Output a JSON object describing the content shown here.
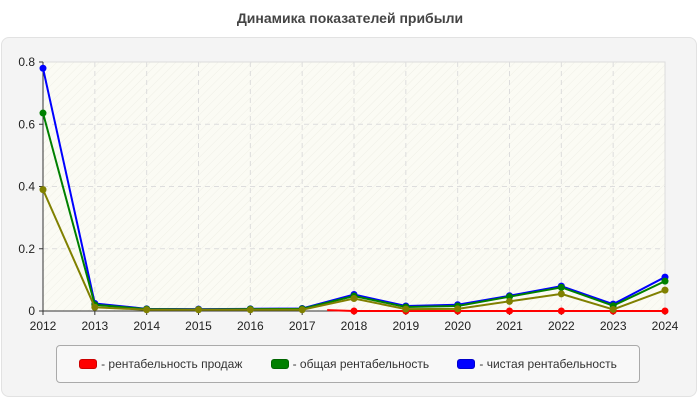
{
  "chart_data": {
    "type": "line",
    "title": "Динамика показателей прибыли",
    "xlabel": "",
    "ylabel": "",
    "ylim": [
      0,
      0.8
    ],
    "yticks": [
      0,
      0.2,
      0.4,
      0.6,
      0.8
    ],
    "ytick_labels": [
      "0",
      "0.2",
      "0.4",
      "0.6",
      "0.8"
    ],
    "grid": true,
    "legend_position": "bottom",
    "categories": [
      "2012",
      "2013",
      "2014",
      "2015",
      "2016",
      "2017",
      "2018",
      "2019",
      "2020",
      "2021",
      "2022",
      "2023",
      "2024"
    ],
    "series": [
      {
        "name": "рентабельность продаж",
        "color": "#ff0000",
        "in_legend": true,
        "values": [
          null,
          null,
          null,
          null,
          null,
          0.003,
          0.0,
          0.0,
          0.0,
          0.0,
          0.0,
          0.0,
          0.0
        ]
      },
      {
        "name": "общая рентабельность",
        "color": "#008000",
        "in_legend": true,
        "values": [
          0.636,
          0.02,
          0.006,
          0.005,
          0.006,
          0.007,
          0.048,
          0.013,
          0.016,
          0.046,
          0.076,
          0.017,
          0.096
        ]
      },
      {
        "name": "чистая рентабельность",
        "color": "#0000ff",
        "in_legend": true,
        "values": [
          0.78,
          0.024,
          0.007,
          0.006,
          0.007,
          0.008,
          0.053,
          0.016,
          0.02,
          0.049,
          0.08,
          0.022,
          0.109
        ]
      },
      {
        "name": "",
        "color": "#808000",
        "in_legend": false,
        "values": [
          0.39,
          0.012,
          0.004,
          0.004,
          0.004,
          0.004,
          0.04,
          0.006,
          0.007,
          0.031,
          0.055,
          0.005,
          0.067
        ]
      }
    ]
  },
  "legend": {
    "items": [
      {
        "label": "- рентабельность продаж",
        "color": "#ff0000"
      },
      {
        "label": "- общая рентабельность",
        "color": "#008000"
      },
      {
        "label": "- чистая рентабельность",
        "color": "#0000ff"
      }
    ]
  }
}
